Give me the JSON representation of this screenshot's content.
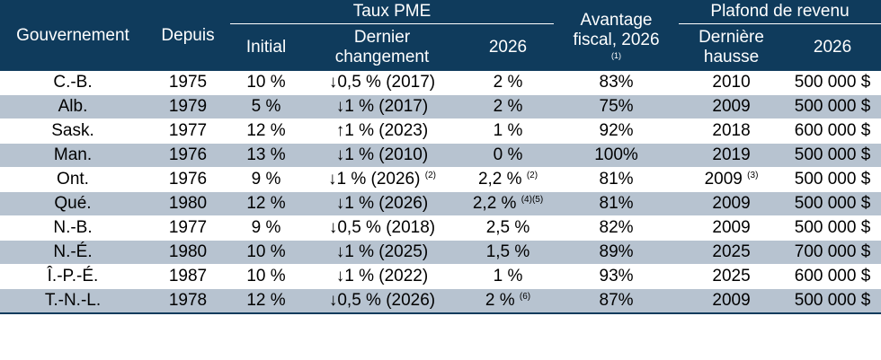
{
  "headers": {
    "gov": "Gouvernement",
    "since": "Depuis",
    "taux_group": "Taux PME",
    "initial": "Initial",
    "last_change_1": "Dernier",
    "last_change_2": "changement",
    "rate_2026": "2026",
    "advantage_1": "Avantage",
    "advantage_2": "fiscal, 2026",
    "advantage_note": "(1)",
    "ceiling_group": "Plafond de revenu",
    "last_raise_1": "Dernière",
    "last_raise_2": "hausse",
    "ceiling_2026": "2026"
  },
  "rows": [
    {
      "gov": "C.-B.",
      "since": "1975",
      "initial": "10 %",
      "change": "↓0,5 % (2017)",
      "change_note": "",
      "rate": "2 %",
      "rate_note": "",
      "adv": "83%",
      "raise": "2010",
      "raise_note": "",
      "ceiling": "500 000 $"
    },
    {
      "gov": "Alb.",
      "since": "1979",
      "initial": "5 %",
      "change": "↓1 % (2017)",
      "change_note": "",
      "rate": "2 %",
      "rate_note": "",
      "adv": "75%",
      "raise": "2009",
      "raise_note": "",
      "ceiling": "500 000 $"
    },
    {
      "gov": "Sask.",
      "since": "1977",
      "initial": "12 %",
      "change": "↑1 % (2023)",
      "change_note": "",
      "rate": "1 %",
      "rate_note": "",
      "adv": "92%",
      "raise": "2018",
      "raise_note": "",
      "ceiling": "600 000 $"
    },
    {
      "gov": "Man.",
      "since": "1976",
      "initial": "13 %",
      "change": "↓1 % (2010)",
      "change_note": "",
      "rate": "0 %",
      "rate_note": "",
      "adv": "100%",
      "raise": "2019",
      "raise_note": "",
      "ceiling": "500 000 $"
    },
    {
      "gov": "Ont.",
      "since": "1976",
      "initial": "9 %",
      "change": "↓1 % (2026)",
      "change_note": "(2)",
      "rate": "2,2 %",
      "rate_note": "(2)",
      "adv": "81%",
      "raise": "2009",
      "raise_note": "(3)",
      "ceiling": "500 000 $"
    },
    {
      "gov": "Qué.",
      "since": "1980",
      "initial": "12 %",
      "change": "↓1 % (2026)",
      "change_note": "",
      "rate": "2,2 %",
      "rate_note": "(4)(5)",
      "adv": "81%",
      "raise": "2009",
      "raise_note": "",
      "ceiling": "500 000 $"
    },
    {
      "gov": "N.-B.",
      "since": "1977",
      "initial": "9 %",
      "change": "↓0,5 % (2018)",
      "change_note": "",
      "rate": "2,5 %",
      "rate_note": "",
      "adv": "82%",
      "raise": "2009",
      "raise_note": "",
      "ceiling": "500 000 $"
    },
    {
      "gov": "N.-É.",
      "since": "1980",
      "initial": "10 %",
      "change": "↓1 % (2025)",
      "change_note": "",
      "rate": "1,5 %",
      "rate_note": "",
      "adv": "89%",
      "raise": "2025",
      "raise_note": "",
      "ceiling": "700 000 $"
    },
    {
      "gov": "Î.-P.-É.",
      "since": "1987",
      "initial": "10 %",
      "change": "↓1 % (2022)",
      "change_note": "",
      "rate": "1 %",
      "rate_note": "",
      "adv": "93%",
      "raise": "2025",
      "raise_note": "",
      "ceiling": "600 000 $"
    },
    {
      "gov": "T.-N.-L.",
      "since": "1978",
      "initial": "12 %",
      "change": "↓0,5 % (2026)",
      "change_note": "",
      "rate": "2 %",
      "rate_note": "(6)",
      "adv": "87%",
      "raise": "2009",
      "raise_note": "",
      "ceiling": "500 000 $"
    }
  ]
}
